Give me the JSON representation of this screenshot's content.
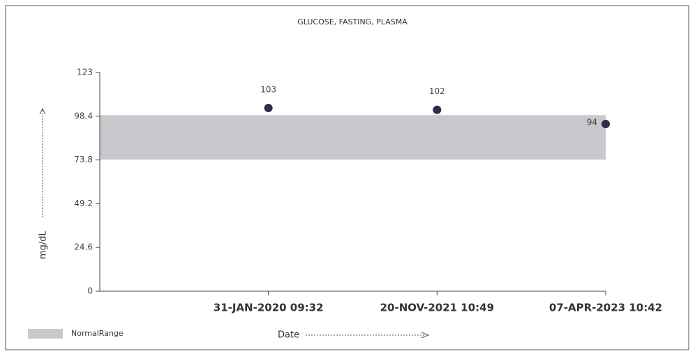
{
  "chart_data": {
    "type": "scatter",
    "title": "GLUCOSE, FASTING, PLASMA",
    "categories": [
      "31-JAN-2020 09:32",
      "20-NOV-2021 10:49",
      "07-APR-2023 10:42"
    ],
    "values": [
      103,
      102,
      94
    ],
    "color": "#2b2e48",
    "ylim": [
      0,
      123
    ],
    "yticks": [
      0,
      24.6,
      49.2,
      73.8,
      98.4,
      123
    ],
    "y_label": "mg/dL",
    "x_label": "Date",
    "normal_range": {
      "name": "NormalRange",
      "low": 74,
      "high": 99,
      "color": "#c9c9cd"
    }
  }
}
